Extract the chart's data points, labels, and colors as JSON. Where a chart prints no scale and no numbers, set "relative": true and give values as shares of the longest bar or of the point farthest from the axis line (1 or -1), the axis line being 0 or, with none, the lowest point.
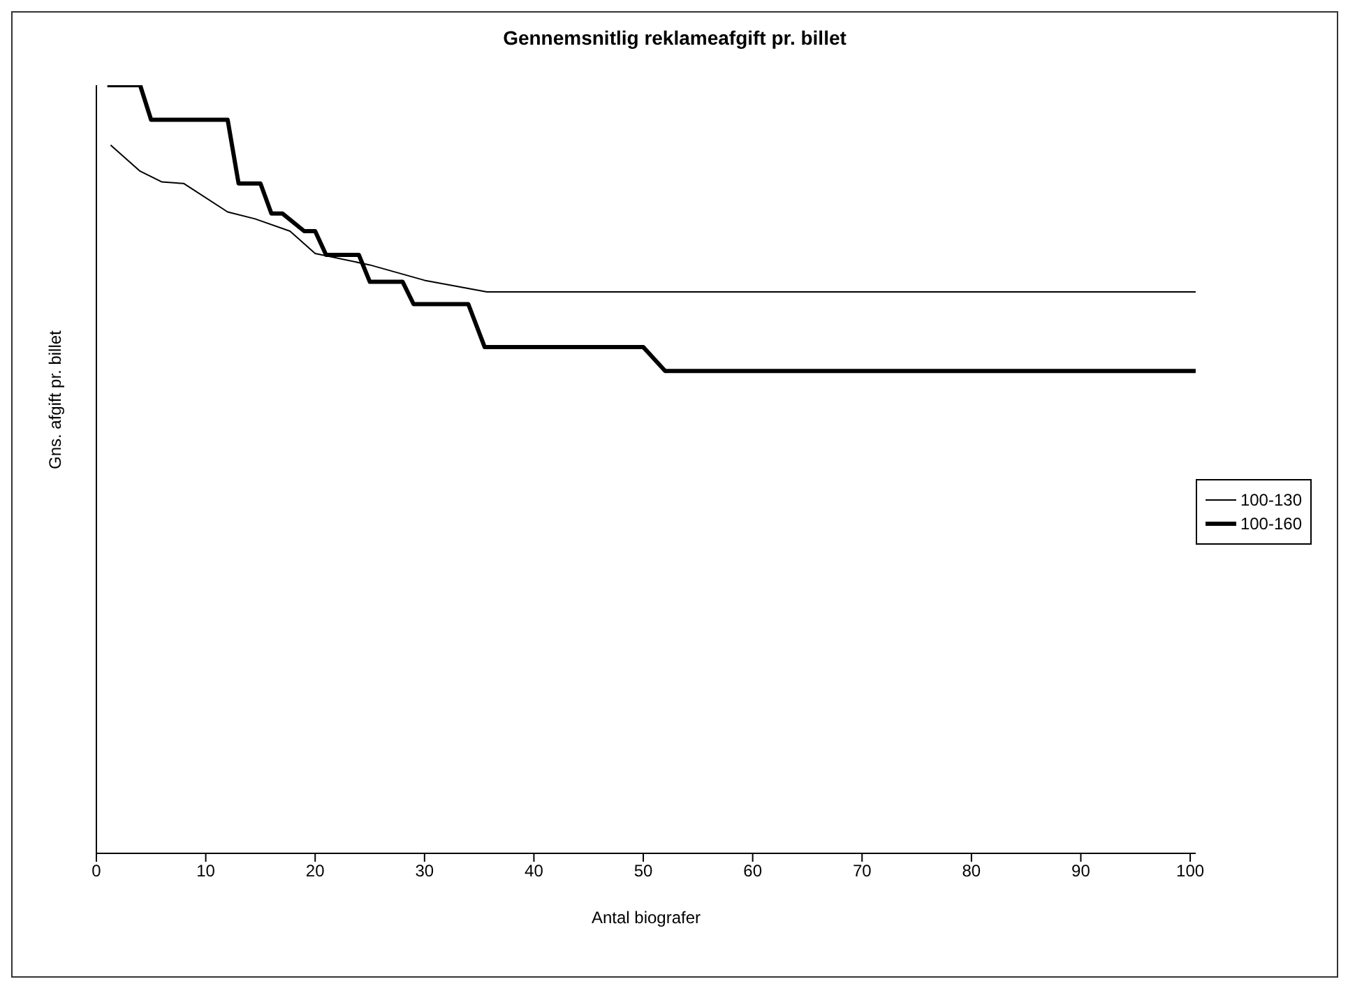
{
  "chart_data": {
    "type": "line",
    "title": "Gennemsnitlig reklameafgift pr. billet",
    "xlabel": "Antal biografer",
    "ylabel": "Gns. afgift pr. billet",
    "relative": true,
    "xlim": [
      0,
      100.5
    ],
    "xticks": [
      0,
      10,
      20,
      30,
      40,
      50,
      60,
      70,
      80,
      90,
      100
    ],
    "grid": false,
    "legend": "right",
    "marker": "none",
    "line_style": "solid",
    "series": [
      {
        "name": "100-130",
        "color": "#000000",
        "x": [
          1.3,
          4,
          6,
          8,
          12,
          14.5,
          17.7,
          20,
          25,
          30,
          35.7,
          100.5
        ],
        "values": [
          0.922,
          0.888,
          0.874,
          0.872,
          0.835,
          0.826,
          0.81,
          0.781,
          0.766,
          0.746,
          0.731,
          0.731
        ]
      },
      {
        "name": "100-160",
        "color": "#000000",
        "x": [
          1,
          4,
          5,
          12,
          13,
          15,
          16,
          17,
          19,
          20,
          21,
          24,
          25,
          28,
          29,
          34,
          35.5,
          50,
          52,
          100.5
        ],
        "values": [
          1,
          1,
          0.955,
          0.955,
          0.872,
          0.872,
          0.833,
          0.833,
          0.81,
          0.81,
          0.779,
          0.779,
          0.744,
          0.744,
          0.715,
          0.715,
          0.659,
          0.659,
          0.628,
          0.628
        ]
      }
    ]
  }
}
